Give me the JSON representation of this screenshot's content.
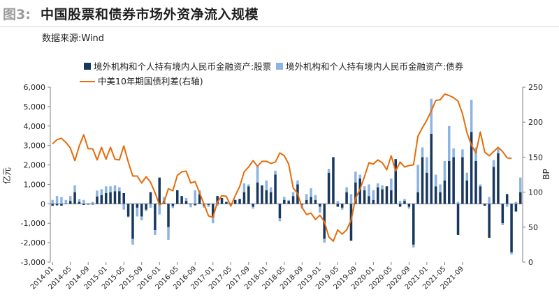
{
  "header": {
    "figure_label": "图3:",
    "title": "中国股票和债券市场外资净流入规模",
    "source": "数据来源:Wind"
  },
  "colors": {
    "stock": "#17375e",
    "bond": "#8db4e2",
    "spread": "#e46c0a"
  },
  "chart_data": {
    "type": "bar",
    "series": [
      {
        "name": "境外机构和个人持有境内人民币金融资产:股票",
        "kind": "stacked-bar",
        "axis": "left",
        "values": [
          -100,
          -80,
          -100,
          -20,
          150,
          600,
          100,
          -60,
          -40,
          -40,
          380,
          450,
          550,
          600,
          650,
          650,
          550,
          -650,
          -1800,
          -200,
          -650,
          -300,
          600,
          -1350,
          1350,
          150,
          -1200,
          -120,
          700,
          400,
          150,
          -30,
          -80,
          500,
          -100,
          -60,
          -700,
          400,
          300,
          100,
          -50,
          200,
          250,
          600,
          900,
          -150,
          1100,
          950,
          700,
          600,
          1500,
          -750,
          200,
          150,
          400,
          1000,
          -50,
          200,
          350,
          200,
          -150,
          -1800,
          1600,
          2400,
          -150,
          -200,
          600,
          -1900,
          1100,
          1300,
          700,
          400,
          200,
          850,
          750,
          900,
          700,
          2300,
          -150,
          150,
          -150,
          -2100,
          600,
          2400,
          1600,
          3600,
          900,
          600,
          1200,
          2200,
          2400,
          -1600,
          2400,
          1200,
          3700,
          2200,
          900,
          -100,
          -1750,
          1900,
          2600,
          -1000,
          500,
          -2500,
          -400,
          600
        ],
        "stack_values": [
          200,
          400,
          350,
          200,
          250,
          350,
          150,
          200,
          0,
          100,
          300,
          300,
          350,
          300,
          300,
          200,
          -300,
          -50,
          -300,
          -450,
          -200,
          -80,
          -200,
          -250,
          -550,
          200,
          -650,
          -100,
          0,
          0,
          150,
          -150,
          700,
          200,
          -100,
          -100,
          -300,
          -100,
          0,
          0,
          50,
          0,
          0,
          450,
          100,
          -100,
          850,
          0,
          500,
          250,
          200,
          -150,
          150,
          50,
          200,
          200,
          -200,
          300,
          450,
          250,
          -300,
          -200,
          200,
          0,
          150,
          -100,
          250,
          500,
          550,
          200,
          200,
          600,
          500,
          200,
          200,
          0,
          600,
          0,
          150,
          100,
          -100,
          -150,
          1400,
          500,
          800,
          1800,
          600,
          400,
          1000,
          1800,
          450,
          100,
          400,
          400,
          1650,
          700,
          100,
          0,
          350,
          350,
          250,
          -100,
          -150,
          -100,
          100,
          750
        ]
      },
      {
        "name": "中美10年期国债利差(右轴)",
        "kind": "line",
        "axis": "right",
        "values": [
          169,
          175,
          177,
          171,
          163,
          145,
          166,
          182,
          162,
          162,
          146,
          164,
          147,
          164,
          147,
          146,
          166,
          143,
          123,
          123,
          113,
          122,
          114,
          99,
          82,
          85,
          105,
          102,
          124,
          129,
          130,
          113,
          115,
          99,
          83,
          66,
          64,
          86,
          95,
          94,
          80,
          95,
          108,
          129,
          136,
          145,
          137,
          144,
          144,
          141,
          143,
          156,
          152,
          140,
          106,
          98,
          78,
          68,
          70,
          61,
          67,
          58,
          36,
          30,
          46,
          40,
          46,
          60,
          91,
          104,
          122,
          142,
          140,
          146,
          142,
          132,
          152,
          130,
          143,
          136,
          138,
          139,
          180,
          192,
          203,
          216,
          231,
          232,
          240,
          238,
          235,
          230,
          212,
          185,
          167,
          156,
          186,
          157,
          152,
          158,
          164,
          158,
          149,
          148
        ]
      }
    ],
    "x_ticks": [
      "2014-01",
      "2014-05",
      "2014-09",
      "2015-01",
      "2015-05",
      "2015-09",
      "2016-01",
      "2016-05",
      "2016-09",
      "2017-01",
      "2017-05",
      "2017-09",
      "2018-01",
      "2018-05",
      "2018-09",
      "2019-01",
      "2019-05",
      "2019-09",
      "2020-01",
      "2020-05",
      "2020-09",
      "2021-01",
      "2021-05",
      "2021-09"
    ],
    "ylabel": "亿元",
    "y2label": "BP",
    "ylim": [
      -3000,
      6000
    ],
    "y2lim": [
      0,
      250
    ],
    "y_ticks": [
      "-3,000",
      "-2,000",
      "-1,000",
      "0",
      "1,000",
      "2,000",
      "3,000",
      "4,000",
      "5,000",
      "6,000"
    ],
    "y2_ticks": [
      "0",
      "50",
      "100",
      "150",
      "200",
      "250"
    ],
    "legend_position": "top",
    "grid": false
  }
}
